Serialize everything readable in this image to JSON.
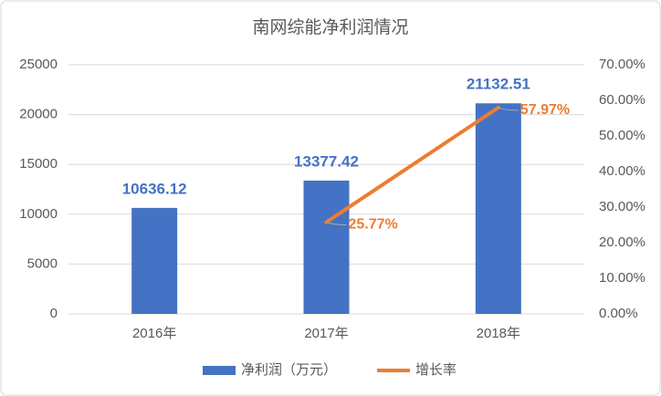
{
  "chart_data": {
    "type": "bar",
    "title": "南网综能净利润情况",
    "categories": [
      "2016年",
      "2017年",
      "2018年"
    ],
    "series": [
      {
        "name": "净利润（万元）",
        "type": "bar",
        "color": "#4472c4",
        "values": [
          10636.12,
          13377.42,
          21132.51
        ]
      },
      {
        "name": "增长率",
        "type": "line",
        "axis": "y2",
        "color": "#ed7d31",
        "values": [
          null,
          25.77,
          57.97
        ],
        "value_labels": [
          null,
          "25.77%",
          "57.97%"
        ]
      }
    ],
    "ylim": [
      0,
      25000
    ],
    "yticks": [
      0,
      5000,
      10000,
      15000,
      20000,
      25000
    ],
    "y2lim": [
      0,
      70
    ],
    "y2ticks": [
      {
        "value": 0,
        "label": "0.00%"
      },
      {
        "value": 10,
        "label": "10.00%"
      },
      {
        "value": 20,
        "label": "20.00%"
      },
      {
        "value": 30,
        "label": "30.00%"
      },
      {
        "value": 40,
        "label": "40.00%"
      },
      {
        "value": 50,
        "label": "50.00%"
      },
      {
        "value": 60,
        "label": "60.00%"
      },
      {
        "value": 70,
        "label": "70.00%"
      }
    ],
    "grid": true,
    "legend": "bottom"
  }
}
